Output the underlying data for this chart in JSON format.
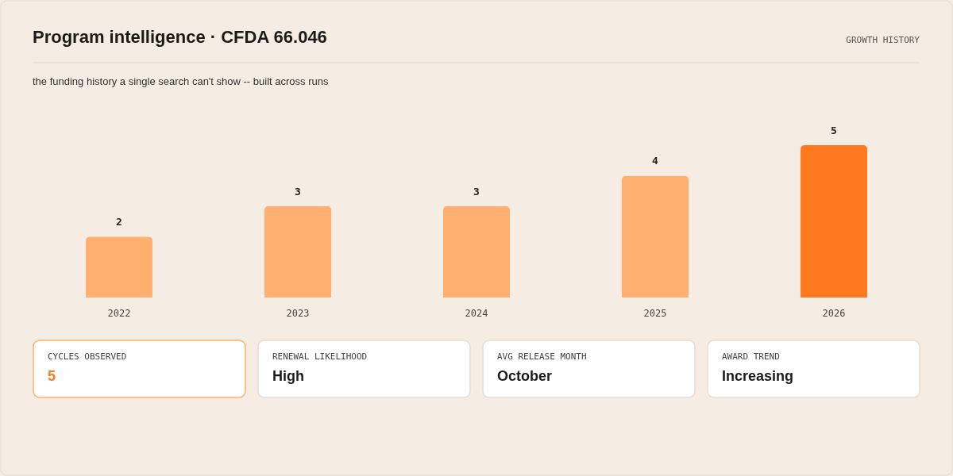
{
  "chart_data": [
    {
      "type": "bar",
      "title": "Program intelligence · CFDA 66.046",
      "subtitle": "the funding history a single search can't show -- built across runs",
      "annotations": [
        "GROWTH HISTORY"
      ],
      "categories": [
        "2022",
        "2023",
        "2024",
        "2025",
        "2026"
      ],
      "values": [
        2,
        3,
        3,
        4,
        5
      ],
      "colors": [
        "#ffb070",
        "#ffb070",
        "#ffb070",
        "#ffb070",
        "#ff7a1f"
      ],
      "data_labels": true
    },
    {
      "type": "other",
      "annotations": [
        "CYCLES OBSERVED",
        "5",
        "RENEWAL LIKELIHOOD",
        "High",
        "AVG RELEASE MONTH",
        "October",
        "AWARD TREND",
        "Increasing"
      ],
      "colors": [
        "#ffb070",
        "#e4ddd5",
        "#e4ddd5",
        "#e4ddd5"
      ]
    }
  ]
}
